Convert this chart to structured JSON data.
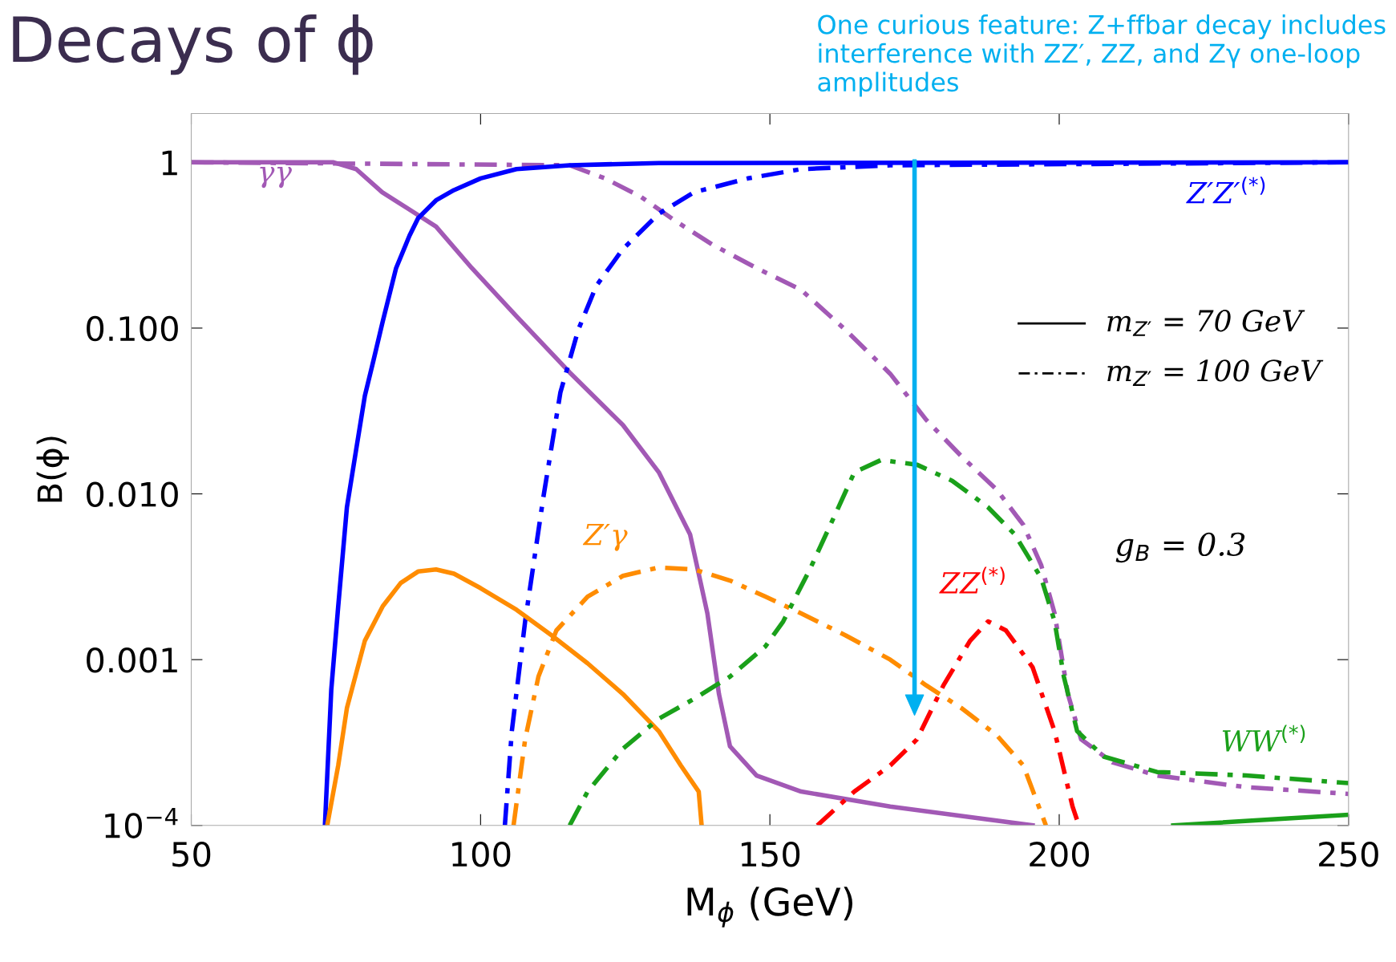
{
  "chart_data": {
    "type": "line",
    "title": "Decays of ϕ",
    "xlabel": "M$_{ϕ}$ (GeV)",
    "ylabel": "B(ϕ)",
    "log": "y",
    "xlim": [
      50,
      250
    ],
    "xticks": [
      50,
      100,
      150,
      200,
      250
    ],
    "ylim": [
      0.0001,
      1.97
    ],
    "yticks": [
      {
        "value": 0.0001,
        "label": "10$^{−4}$"
      },
      0.001,
      {
        "value": 0.01,
        "label": "0.010"
      },
      {
        "value": 0.1,
        "label": "0.100"
      },
      1
    ],
    "grid": false,
    "marker": "none",
    "series": [
      {
        "name": "γγ",
        "color": "#a259b5",
        "line_style": "solid",
        "x": [
          50,
          74.6,
          78.5,
          83,
          92.3,
          98.5,
          106.2,
          115.4,
          124.6,
          130.8,
          136.2,
          139.2,
          141.2,
          143.1,
          147.7,
          155.4,
          170.8,
          195.4
        ],
        "values": [
          1,
          1,
          0.91,
          0.66,
          0.41,
          0.23,
          0.118,
          0.054,
          0.026,
          0.0135,
          0.0057,
          0.0019,
          0.00062,
          0.0003,
          0.0002,
          0.00016,
          0.00013,
          0.0001
        ]
      },
      {
        "color": "#a259b5",
        "line_style": "dashdot",
        "x": [
          50,
          115.4,
          121.5,
          127.7,
          133.8,
          140,
          147.7,
          155.4,
          163,
          170.8,
          177,
          183,
          189.2,
          193.8,
          196.9,
          199.2,
          201.5,
          203.8,
          209.2,
          216.9,
          232.3,
          250
        ],
        "values": [
          1,
          0.96,
          0.8,
          0.62,
          0.44,
          0.32,
          0.23,
          0.17,
          0.098,
          0.053,
          0.028,
          0.017,
          0.0106,
          0.0065,
          0.0037,
          0.0019,
          0.00062,
          0.00033,
          0.00024,
          0.0002,
          0.00017,
          0.000155
        ]
      },
      {
        "name": "Z′Z′$^{(*)}$",
        "color": "#0000ff",
        "line_style": "solid",
        "x": [
          73.1,
          74.2,
          75.4,
          76.9,
          78.5,
          80,
          81.5,
          83.1,
          85.4,
          87.7,
          89.2,
          92.3,
          95.4,
          100,
          106.2,
          115.4,
          130.8,
          250
        ],
        "values": [
          0.0001,
          0.00066,
          0.0021,
          0.0083,
          0.0185,
          0.039,
          0.064,
          0.11,
          0.23,
          0.36,
          0.46,
          0.59,
          0.68,
          0.8,
          0.91,
          0.96,
          0.99,
          1
        ]
      },
      {
        "color": "#0000ff",
        "line_style": "dashdot",
        "x": [
          104.2,
          105.4,
          107.7,
          110.8,
          113.8,
          116.9,
          120,
          124.6,
          130.8,
          136.9,
          146.2,
          155.4,
          170.8,
          250
        ],
        "values": [
          0.0001,
          0.00037,
          0.0017,
          0.0093,
          0.041,
          0.098,
          0.18,
          0.3,
          0.49,
          0.66,
          0.8,
          0.91,
          0.96,
          1
        ]
      },
      {
        "name": "Z′γ",
        "color": "#ff8c00",
        "line_style": "solid",
        "x": [
          73.5,
          75.4,
          76.9,
          80,
          83.1,
          86.2,
          89.2,
          92.3,
          95.4,
          100,
          106.2,
          112.3,
          118.5,
          124.6,
          130.8,
          134.6,
          137.7,
          138.2
        ],
        "values": [
          0.0001,
          0.00023,
          0.00051,
          0.0013,
          0.0021,
          0.0029,
          0.0034,
          0.0035,
          0.0033,
          0.0027,
          0.002,
          0.0014,
          0.00095,
          0.00062,
          0.00037,
          0.00023,
          0.00016,
          0.0001
        ]
      },
      {
        "color": "#ff8c00",
        "line_style": "dashdot",
        "x": [
          105.7,
          107.7,
          110,
          113.1,
          118.5,
          124.6,
          130.8,
          136.9,
          143.1,
          149.2,
          155.4,
          163.1,
          170.8,
          177,
          183.1,
          189.2,
          193.8,
          197.7
        ],
        "values": [
          0.0001,
          0.00033,
          0.00079,
          0.0015,
          0.0024,
          0.0032,
          0.0036,
          0.0035,
          0.003,
          0.0024,
          0.0019,
          0.0014,
          0.001,
          0.0007,
          0.00051,
          0.00035,
          0.00023,
          0.0001
        ]
      },
      {
        "name": "WW$^{(*)}$",
        "color": "#1aa01a",
        "line_style": "dashdot",
        "x": [
          115.4,
          118.5,
          124.6,
          130.8,
          136.9,
          143.1,
          149.2,
          152.3,
          156.9,
          161.5,
          164.6,
          169.2,
          175.4,
          181.5,
          187.7,
          192.3,
          196.9,
          199.2,
          200.8,
          203.1,
          207.7,
          216.9,
          232.3,
          250
        ],
        "values": [
          0.0001,
          0.00016,
          0.00029,
          0.00044,
          0.00058,
          0.00079,
          0.0012,
          0.0017,
          0.0035,
          0.0078,
          0.0135,
          0.016,
          0.015,
          0.012,
          0.0083,
          0.0057,
          0.0031,
          0.0017,
          0.00079,
          0.00037,
          0.00026,
          0.00021,
          0.0002,
          0.00018
        ]
      },
      {
        "color": "#1aa01a",
        "line_style": "solid",
        "x": [
          219.7,
          250
        ],
        "values": [
          0.0001,
          0.000116
        ]
      },
      {
        "name": "ZZ$^{(*)}$",
        "color": "#ff0000",
        "line_style": "dashdot",
        "x": [
          158.2,
          164.6,
          170.8,
          175.4,
          180,
          184.6,
          187.7,
          190.8,
          195.4,
          199.2,
          202.3,
          203.4
        ],
        "values": [
          0.0001,
          0.00016,
          0.00023,
          0.00033,
          0.0007,
          0.0013,
          0.0017,
          0.0015,
          0.0009,
          0.00037,
          0.00013,
          0.0001
        ]
      }
    ],
    "annotations": [
      "One curious feature: Z+ffbar decay includes interference with ZZ′, ZZ, and Zγ one-loop amplitudes",
      "g$_{B}$ = 0.3",
      "m$_{Z′}$ = 70 GeV",
      "m$_{Z′}$ = 100 GeV"
    ]
  }
}
